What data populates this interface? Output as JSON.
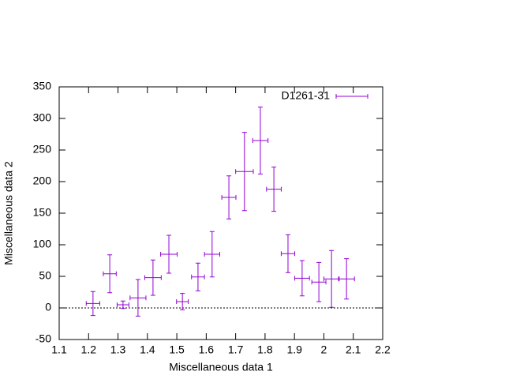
{
  "chart_data": {
    "type": "errorbar",
    "xlabel": "Miscellaneous data 1",
    "ylabel": "Miscellaneous data 2",
    "xlim": [
      1.1,
      2.2
    ],
    "xticks": [
      1.1,
      1.2,
      1.3,
      1.4,
      1.5,
      1.6,
      1.7,
      1.8,
      1.9,
      2,
      2.1,
      2.2
    ],
    "ylim": [
      -50,
      350
    ],
    "yticks": [
      -50,
      0,
      50,
      100,
      150,
      200,
      250,
      300,
      350
    ],
    "zeroaxis": true,
    "legend": "top-right",
    "series": [
      {
        "name": "D1261-31",
        "color": "#9400d3",
        "x": [
          1.215,
          1.272,
          1.317,
          1.368,
          1.419,
          1.473,
          1.519,
          1.572,
          1.62,
          1.677,
          1.73,
          1.784,
          1.83,
          1.878,
          1.926,
          1.983,
          2.026,
          2.077
        ],
        "values": [
          7,
          54,
          5,
          16,
          48,
          85,
          10,
          49,
          85,
          175,
          216,
          265,
          188,
          86,
          47,
          41,
          46,
          46
        ],
        "xerr": [
          0.023,
          0.022,
          0.02,
          0.027,
          0.028,
          0.028,
          0.02,
          0.022,
          0.026,
          0.024,
          0.03,
          0.026,
          0.025,
          0.023,
          0.025,
          0.024,
          0.026,
          0.027
        ],
        "yerr": [
          19,
          30,
          6,
          29,
          28,
          30,
          13,
          22,
          36,
          34,
          62,
          53,
          35,
          30,
          28,
          31,
          45,
          32
        ]
      }
    ]
  }
}
